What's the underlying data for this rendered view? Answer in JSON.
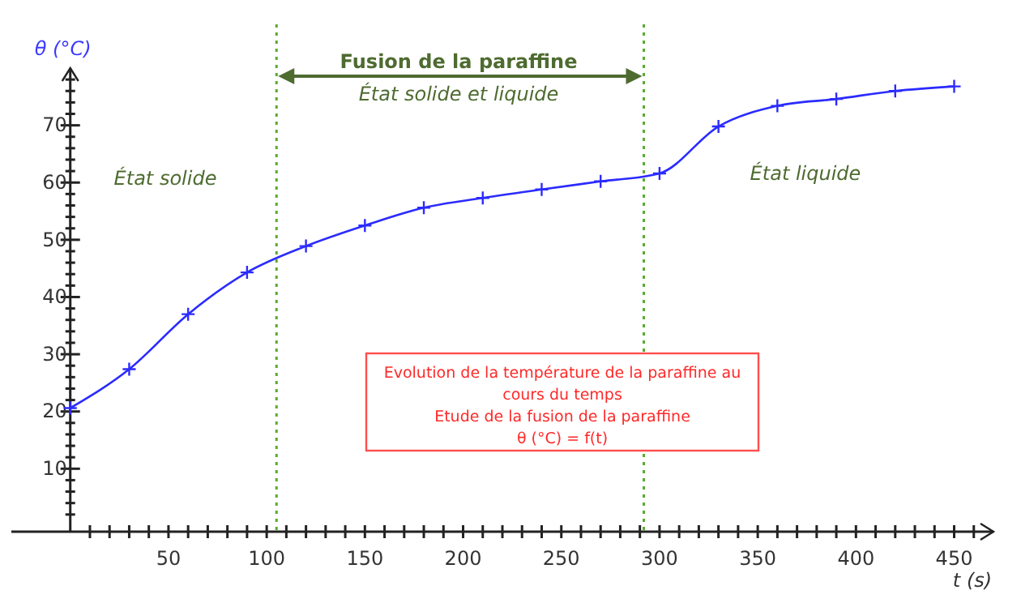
{
  "chart_data": {
    "type": "line",
    "xlabel": "t  (s)",
    "ylabel": "θ  (°C)",
    "x": [
      0,
      30,
      60,
      90,
      120,
      150,
      180,
      210,
      240,
      270,
      300,
      330,
      360,
      390,
      420,
      450
    ],
    "series": [
      {
        "color": "#2b2bff",
        "values": [
          20.6,
          27.4,
          37,
          44.3,
          48.9,
          52.5,
          55.6,
          57.3,
          58.8,
          60.2,
          61.6,
          69.8,
          73.4,
          74.6,
          76,
          76.8
        ]
      }
    ],
    "marker": "cross",
    "line_style": "solid",
    "grid": false,
    "xlim": [
      -30,
      470
    ],
    "ylim": [
      -1,
      80
    ],
    "xticks": [
      {
        "value": 10,
        "label": null
      },
      {
        "value": 20,
        "label": null
      },
      {
        "value": 30,
        "label": null
      },
      {
        "value": 40,
        "label": null
      },
      50,
      {
        "value": 60,
        "label": null
      },
      {
        "value": 70,
        "label": null
      },
      {
        "value": 80,
        "label": null
      },
      {
        "value": 90,
        "label": null
      },
      100,
      {
        "value": 110,
        "label": null
      },
      {
        "value": 120,
        "label": null
      },
      {
        "value": 130,
        "label": null
      },
      {
        "value": 140,
        "label": null
      },
      150,
      {
        "value": 160,
        "label": null
      },
      {
        "value": 170,
        "label": null
      },
      {
        "value": 180,
        "label": null
      },
      {
        "value": 190,
        "label": null
      },
      200,
      {
        "value": 210,
        "label": null
      },
      {
        "value": 220,
        "label": null
      },
      {
        "value": 230,
        "label": null
      },
      {
        "value": 240,
        "label": null
      },
      250,
      {
        "value": 260,
        "label": null
      },
      {
        "value": 270,
        "label": null
      },
      {
        "value": 280,
        "label": null
      },
      {
        "value": 290,
        "label": null
      },
      300,
      {
        "value": 310,
        "label": null
      },
      {
        "value": 320,
        "label": null
      },
      {
        "value": 330,
        "label": null
      },
      {
        "value": 340,
        "label": null
      },
      350,
      {
        "value": 360,
        "label": null
      },
      {
        "value": 370,
        "label": null
      },
      {
        "value": 380,
        "label": null
      },
      {
        "value": 390,
        "label": null
      },
      400,
      {
        "value": 410,
        "label": null
      },
      {
        "value": 420,
        "label": null
      },
      {
        "value": 430,
        "label": null
      },
      {
        "value": 440,
        "label": null
      },
      450,
      {
        "value": 460,
        "label": null
      }
    ],
    "yticks": [
      {
        "value": 2,
        "label": null
      },
      {
        "value": 4,
        "label": null
      },
      {
        "value": 6,
        "label": null
      },
      {
        "value": 8,
        "label": null
      },
      10,
      {
        "value": 12,
        "label": null
      },
      {
        "value": 14,
        "label": null
      },
      {
        "value": 16,
        "label": null
      },
      {
        "value": 18,
        "label": null
      },
      20,
      {
        "value": 22,
        "label": null
      },
      {
        "value": 24,
        "label": null
      },
      {
        "value": 26,
        "label": null
      },
      {
        "value": 28,
        "label": null
      },
      30,
      {
        "value": 32,
        "label": null
      },
      {
        "value": 34,
        "label": null
      },
      {
        "value": 36,
        "label": null
      },
      {
        "value": 38,
        "label": null
      },
      40,
      {
        "value": 42,
        "label": null
      },
      {
        "value": 44,
        "label": null
      },
      {
        "value": 46,
        "label": null
      },
      {
        "value": 48,
        "label": null
      },
      50,
      {
        "value": 52,
        "label": null
      },
      {
        "value": 54,
        "label": null
      },
      {
        "value": 56,
        "label": null
      },
      {
        "value": 58,
        "label": null
      },
      60,
      {
        "value": 62,
        "label": null
      },
      {
        "value": 64,
        "label": null
      },
      {
        "value": 66,
        "label": null
      },
      {
        "value": 68,
        "label": null
      },
      70,
      {
        "value": 72,
        "label": null
      },
      {
        "value": 74,
        "label": null
      },
      {
        "value": 76,
        "label": null
      },
      {
        "value": 78,
        "label": null
      }
    ],
    "ref_lines": [
      {
        "axis": "x",
        "value": 105,
        "color": "#5aaa32",
        "line_style": "dotted"
      },
      {
        "axis": "x",
        "value": 292,
        "color": "#5aaa32",
        "line_style": "dotted"
      }
    ],
    "annotations": [
      "Fusion de la paraffine",
      "État solide et liquide",
      "État solide",
      "État liquide",
      "Evolution de la température de la paraffine au\ncours du temps\nEtude de la fusion de la paraffine\nθ (°C) = f(t)"
    ]
  }
}
